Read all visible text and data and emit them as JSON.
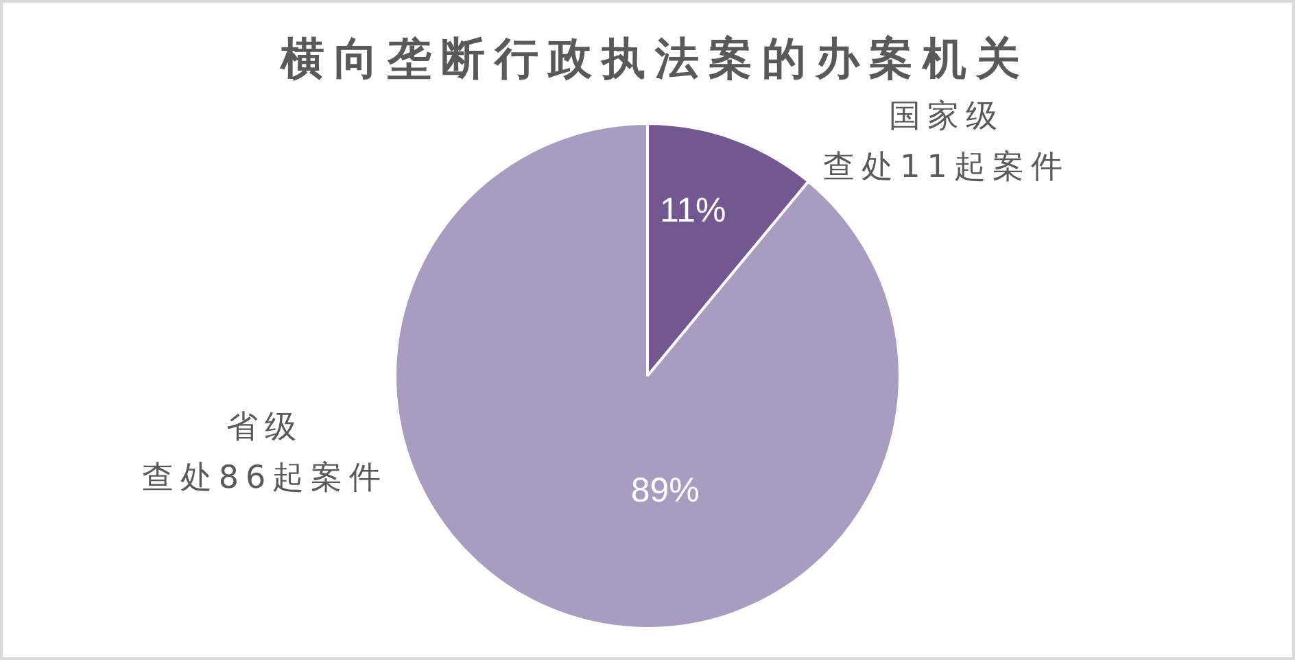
{
  "chart_data": {
    "type": "pie",
    "title": "横向垄断行政执法案的办案机关",
    "categories": [
      "国家级",
      "省级"
    ],
    "values": [
      11,
      89
    ],
    "colors": [
      "#725791",
      "#aa9cc0"
    ],
    "value_labels": [
      "11%",
      "89%"
    ],
    "annotations": [
      "查处11起案件",
      "查处86起案件"
    ]
  }
}
